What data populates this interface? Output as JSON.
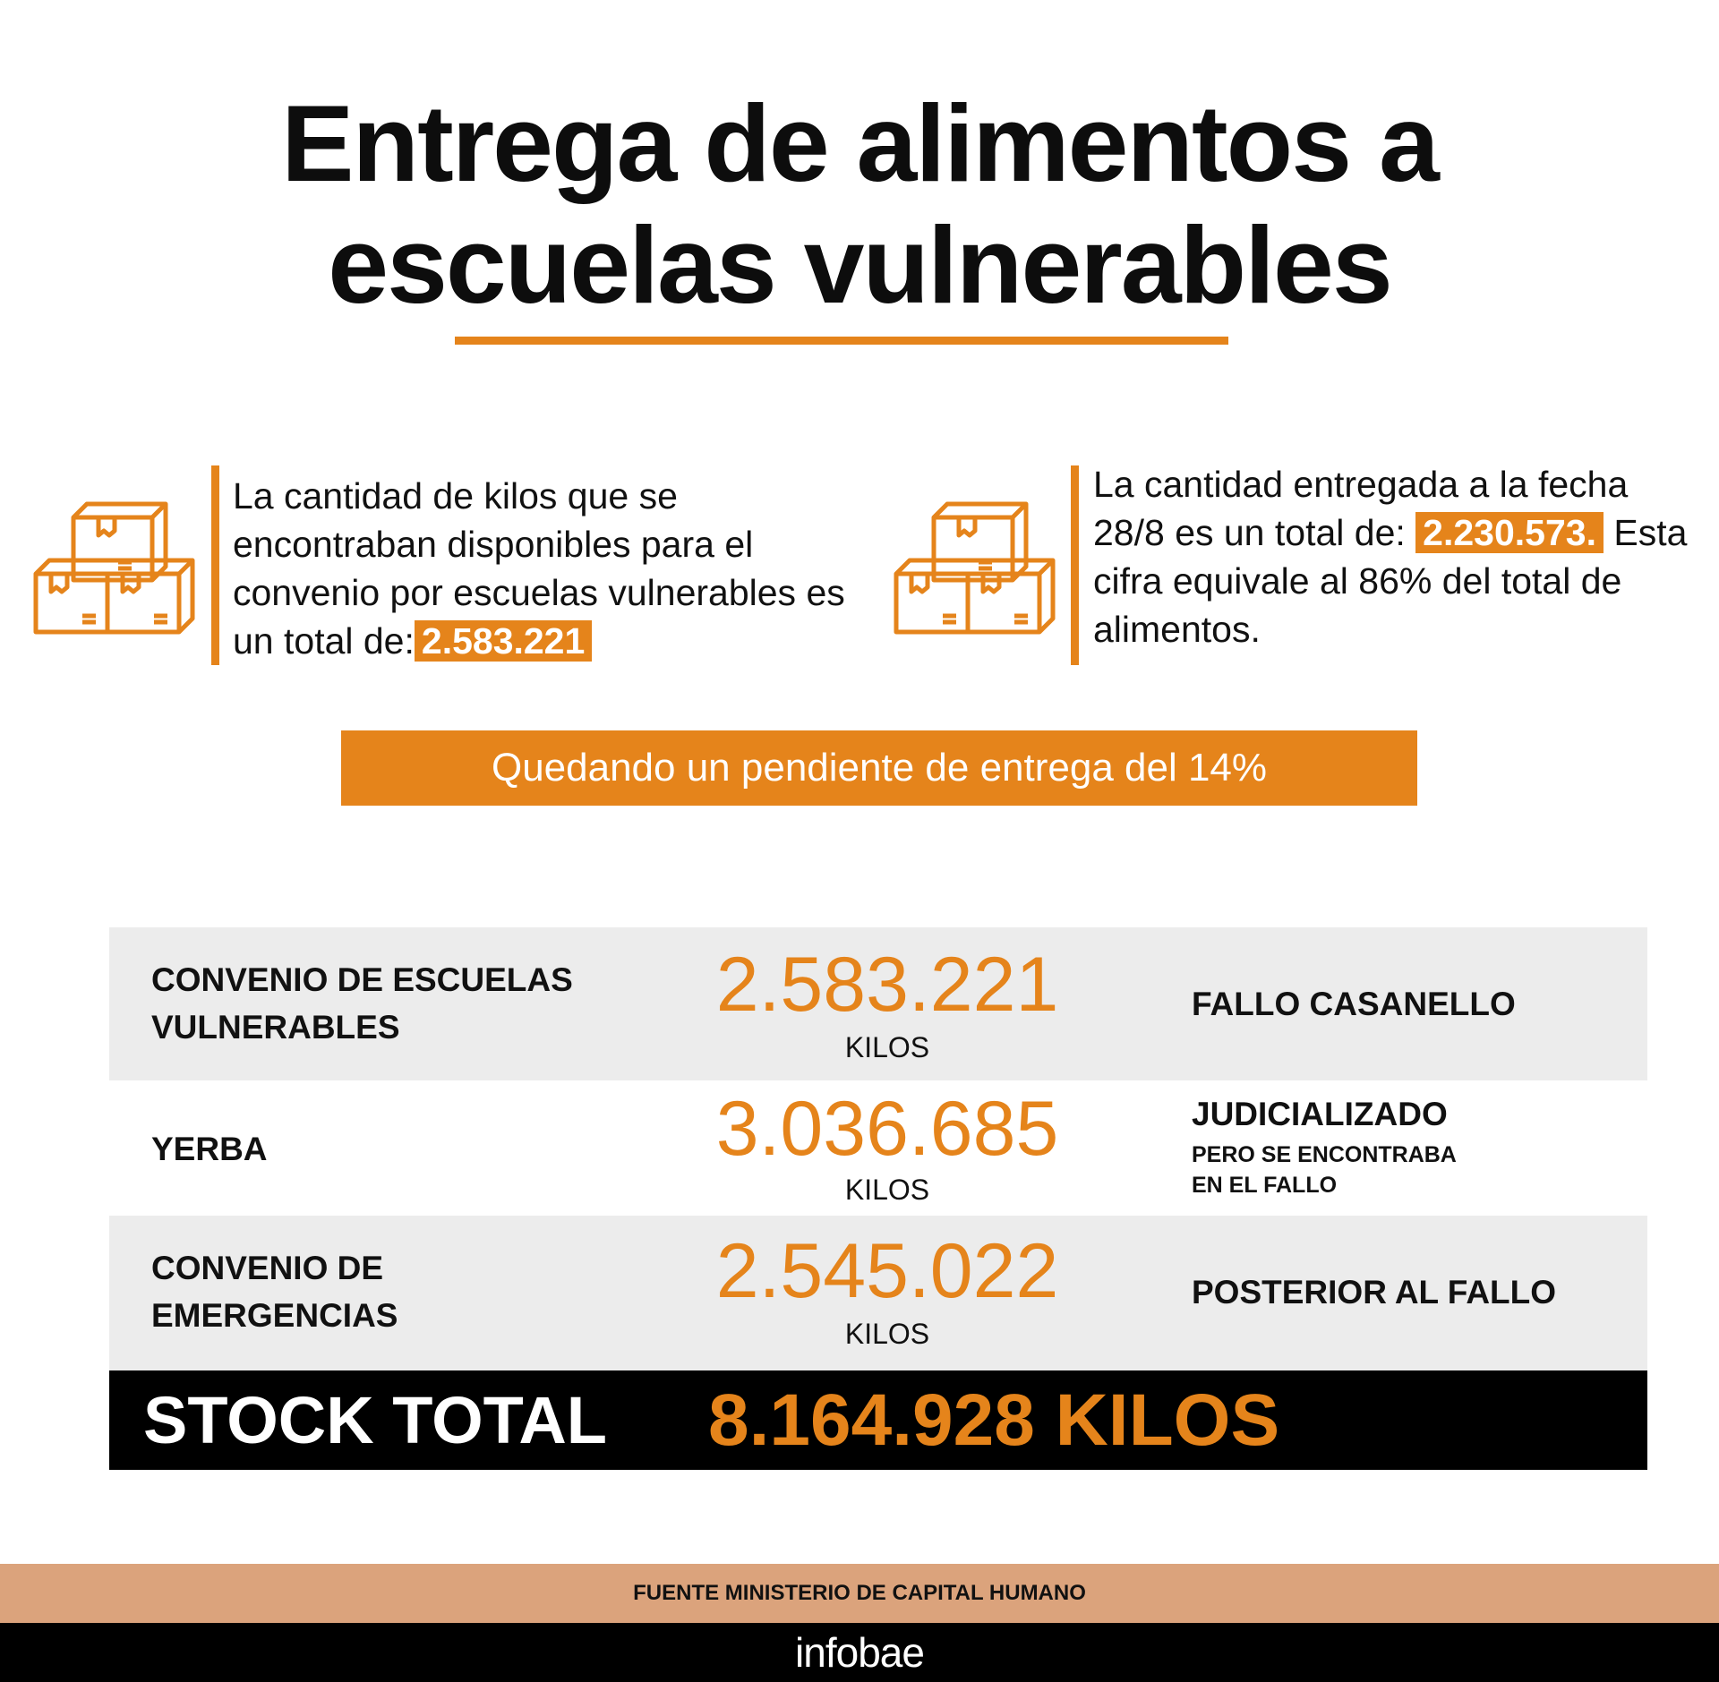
{
  "title": {
    "line1": "Entrega de alimentos a",
    "line2": "escuelas vulnerables"
  },
  "left_block": {
    "text": "La cantidad de kilos que se encontraban disponibles para el convenio por escuelas vulnerables es un total de:",
    "highlight": "2.583.221",
    "icon": "boxes-icon"
  },
  "right_block": {
    "text1": "La cantidad entregada a la fecha 28/8 es un total de:",
    "highlight": "2.230.573.",
    "text2": "Esta cifra equivale al 86% del total de alimentos.",
    "icon": "boxes-icon"
  },
  "banner": "Quedando un pendiente de entrega del 14%",
  "table": {
    "rows": [
      {
        "label": "CONVENIO DE ESCUELAS VULNERABLES",
        "value": "2.583.221",
        "unit": "KILOS",
        "note": "FALLO CASANELLO",
        "subnote": ""
      },
      {
        "label": "YERBA",
        "value": "3.036.685",
        "unit": "KILOS",
        "note": "JUDICIALIZADO",
        "subnote": "PERO SE ENCONTRABA EN EL FALLO"
      },
      {
        "label": "CONVENIO DE EMERGENCIAS",
        "value": "2.545.022",
        "unit": "KILOS",
        "note": "POSTERIOR AL FALLO",
        "subnote": ""
      }
    ],
    "total_label": "STOCK TOTAL",
    "total_value": "8.164.928 KILOS"
  },
  "footer": {
    "source": "FUENTE MINISTERIO DE CAPITAL HUMANO",
    "brand": "infobae"
  },
  "colors": {
    "accent": "#e5841b",
    "grey": "#ececec",
    "tan": "#dba37c"
  }
}
